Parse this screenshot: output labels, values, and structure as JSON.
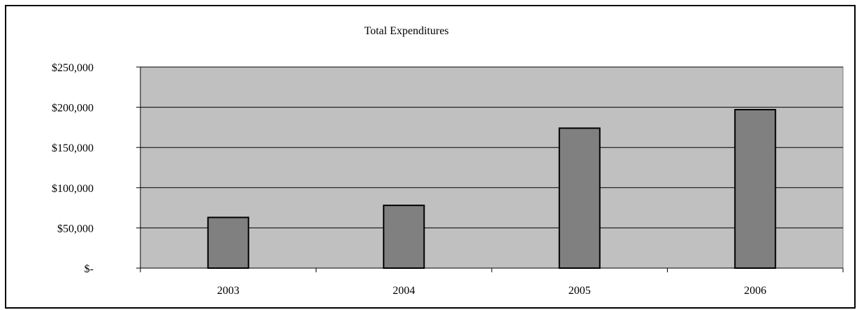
{
  "chart_data": {
    "type": "bar",
    "title": "Total Expenditures",
    "xlabel": "",
    "ylabel": "",
    "categories": [
      "2003",
      "2004",
      "2005",
      "2006"
    ],
    "values": [
      63000,
      78000,
      174000,
      197000
    ],
    "ylim": [
      0,
      250000
    ],
    "yticks": [
      0,
      50000,
      100000,
      150000,
      200000,
      250000
    ],
    "ytick_labels": [
      "$-",
      "$50,000",
      "$100,000",
      "$150,000",
      "$200,000",
      "$250,000"
    ],
    "grid": true,
    "legend": "none",
    "colors": {
      "plot_background": "#c0c0c0",
      "bar_fill": "#808080",
      "bar_stroke": "#000000",
      "gridline": "#000000"
    }
  }
}
